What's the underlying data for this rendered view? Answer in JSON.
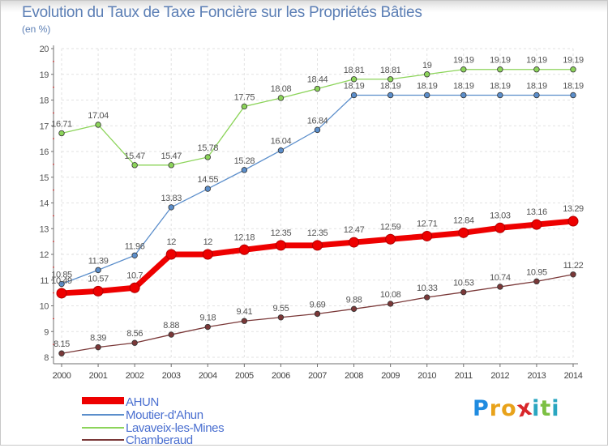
{
  "title": "Evolution du Taux de Taxe Foncière sur les Propriétés Bâties",
  "unit_label": "(en %)",
  "logo": {
    "text": "Proxiti",
    "letters": [
      "P",
      "r",
      "o",
      "x",
      "i",
      "t",
      "i"
    ],
    "colors": [
      "#1f8be0",
      "#e8a21a",
      "#e8a21a",
      "#d8262a",
      "#2aa6c0",
      "#7cc043",
      "#2aa6c0"
    ]
  },
  "chart_data": {
    "type": "line",
    "title": "Evolution du Taux de Taxe Foncière sur les Propriétés Bâties",
    "ylabel": "(en %)",
    "xlabel": "",
    "x": [
      "2000",
      "2001",
      "2002",
      "2003",
      "2004",
      "2005",
      "2006",
      "2007",
      "2008",
      "2009",
      "2010",
      "2011",
      "2012",
      "2013",
      "2014"
    ],
    "ylim": [
      8,
      20
    ],
    "yticks": [
      "8",
      "9",
      "10",
      "11",
      "12",
      "13",
      "14",
      "15",
      "16",
      "17",
      "18",
      "19",
      "20"
    ],
    "grid": true,
    "legend_position": "bottom-left",
    "series": [
      {
        "name": "AHUN",
        "color": "#ee0000",
        "values": [
          10.49,
          10.57,
          10.7,
          12,
          12,
          12.18,
          12.35,
          12.35,
          12.47,
          12.59,
          12.71,
          12.84,
          13.03,
          13.16,
          13.29
        ],
        "labels": [
          "10.49",
          "10.57",
          "10.7",
          "12",
          "12",
          "12.18",
          "12.35",
          "12.35",
          "12.47",
          "12.59",
          "12.71",
          "12.84",
          "13.03",
          "13.16",
          "13.29"
        ]
      },
      {
        "name": "Moutier-d'Ahun",
        "color": "#5b8ecb",
        "values": [
          10.85,
          11.39,
          11.96,
          13.83,
          14.55,
          15.28,
          16.04,
          16.84,
          18.19,
          18.19,
          18.19,
          18.19,
          18.19,
          18.19,
          18.19
        ],
        "labels": [
          "10.85",
          "11.39",
          "11.96",
          "13.83",
          "14.55",
          "15.28",
          "16.04",
          "16.84",
          "18.19",
          "18.19",
          "18.19",
          "18.19",
          "18.19",
          "18.19",
          "18.19"
        ]
      },
      {
        "name": "Lavaveix-les-Mines",
        "color": "#8cd45a",
        "values": [
          16.71,
          17.04,
          15.47,
          15.47,
          15.78,
          17.75,
          18.08,
          18.44,
          18.81,
          18.81,
          19,
          19.19,
          19.19,
          19.19,
          19.19
        ],
        "labels": [
          "16.71",
          "17.04",
          "15.47",
          "15.47",
          "15.78",
          "17.75",
          "18.08",
          "18.44",
          "18.81",
          "18.81",
          "19",
          "19.19",
          "19.19",
          "19.19",
          "19.19"
        ]
      },
      {
        "name": "Chamberaud",
        "color": "#7a3838",
        "values": [
          8.15,
          8.39,
          8.56,
          8.88,
          9.18,
          9.41,
          9.55,
          9.69,
          9.88,
          10.08,
          10.33,
          10.53,
          10.74,
          10.95,
          11.22
        ],
        "labels": [
          "8.15",
          "8.39",
          "8.56",
          "8.88",
          "9.18",
          "9.41",
          "9.55",
          "9.69",
          "9.88",
          "10.08",
          "10.33",
          "10.53",
          "10.74",
          "10.95",
          "11.22"
        ]
      }
    ]
  }
}
